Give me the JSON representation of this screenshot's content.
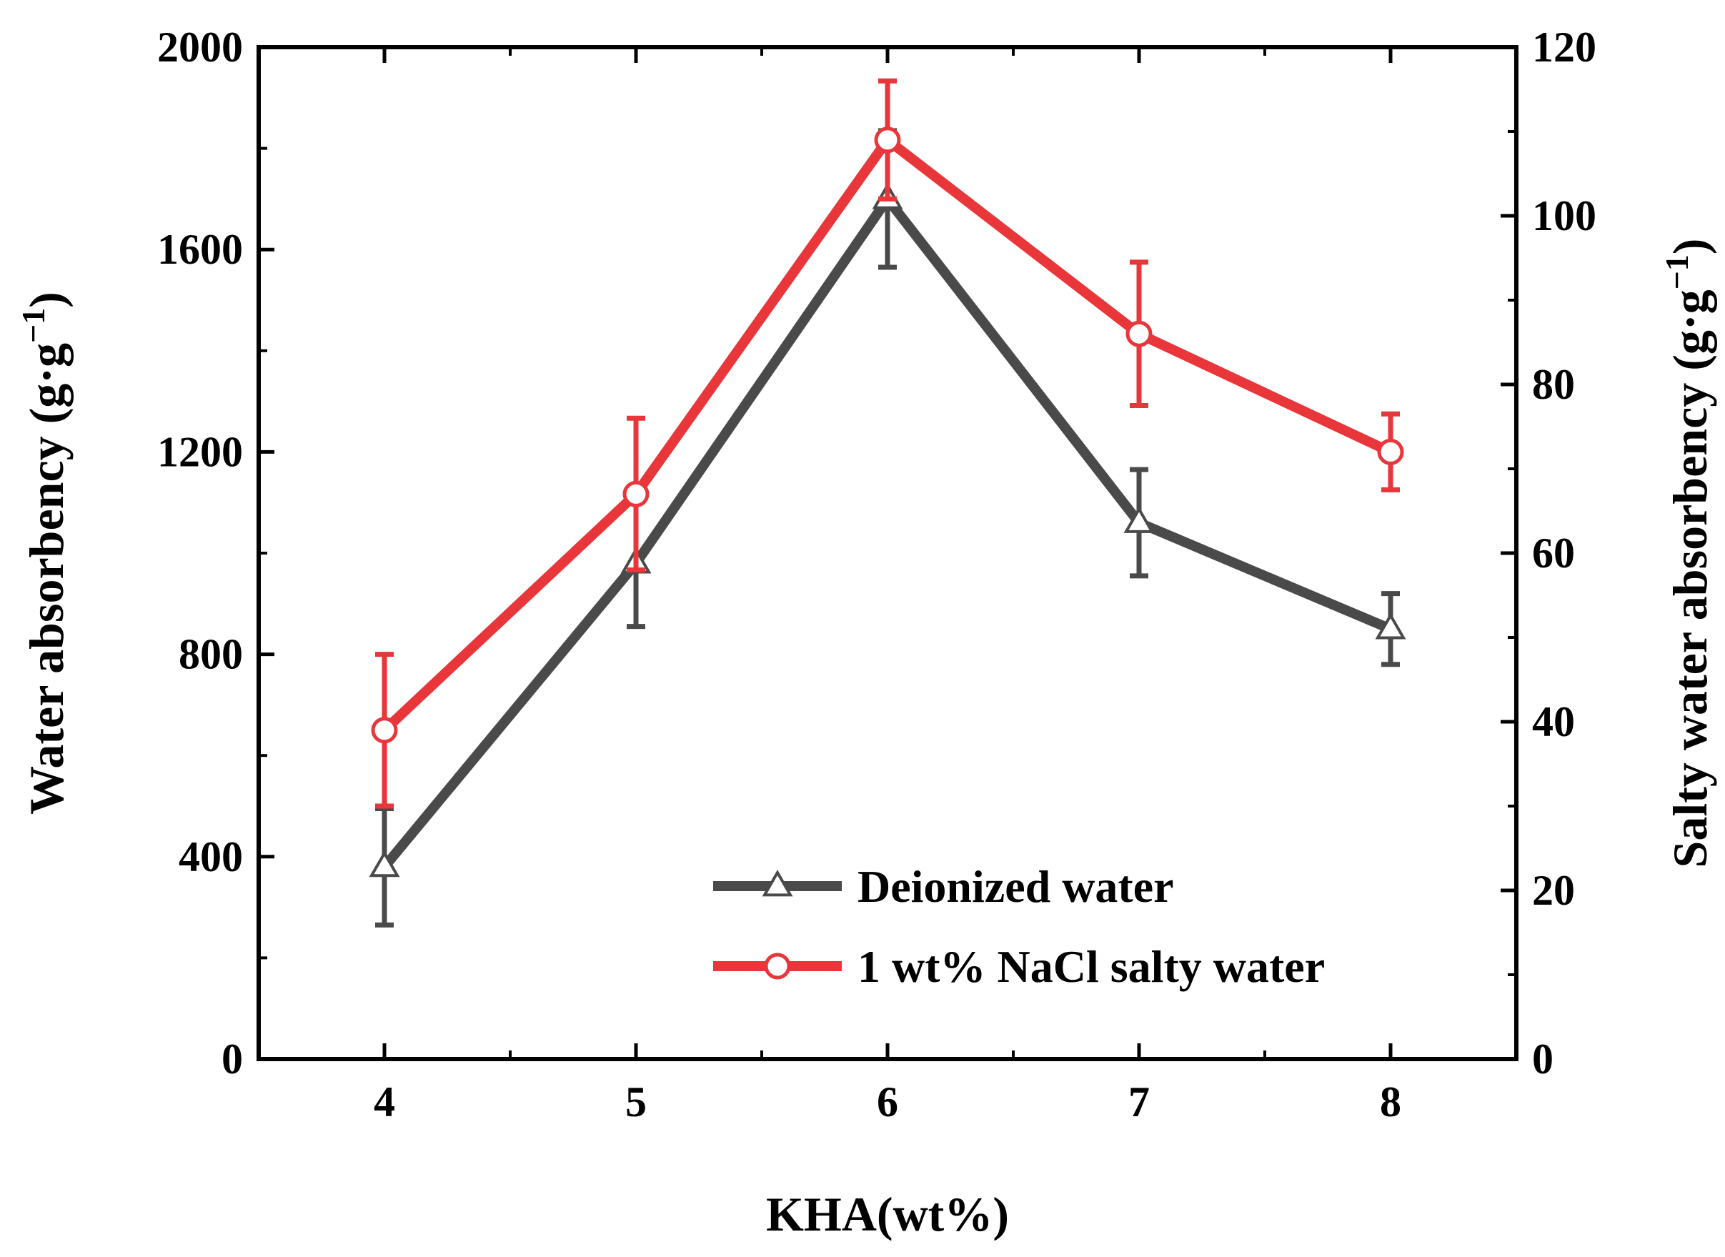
{
  "chart_data": {
    "type": "line",
    "x": [
      4,
      5,
      6,
      7,
      8
    ],
    "xlim": [
      3.5,
      8.5
    ],
    "xticks": [
      "4",
      "5",
      "6",
      "7",
      "8"
    ],
    "xlabel": "KHA(wt%)",
    "y_left": {
      "label_main": "Water absorbency (g·g",
      "label_sup": "−1",
      "label_close": ")",
      "ylim": [
        0,
        2000
      ],
      "ticks": [
        "0",
        "400",
        "800",
        "1200",
        "1600",
        "2000"
      ]
    },
    "y_right": {
      "label_main": "Salty water absorbency (g·g",
      "label_sup": "−1",
      "label_close": ")",
      "ylim": [
        0,
        120
      ],
      "ticks": [
        "0",
        "20",
        "40",
        "60",
        "80",
        "100",
        "120"
      ]
    },
    "series": [
      {
        "name": "Deionized water",
        "axis": "left",
        "marker": "triangle",
        "color": "#4a4a4a",
        "values": [
          380,
          980,
          1700,
          1060,
          850
        ],
        "err_low": [
          115,
          125,
          135,
          105,
          70
        ],
        "err_high": [
          115,
          125,
          135,
          105,
          70
        ]
      },
      {
        "name": "1 wt% NaCl salty water",
        "axis": "right",
        "marker": "circle",
        "color": "#e8363a",
        "values": [
          39,
          67,
          109,
          86,
          72
        ],
        "err_low": [
          9,
          9,
          7,
          8.5,
          4.5
        ],
        "err_high": [
          9,
          9,
          7,
          8.5,
          4.5
        ]
      }
    ]
  }
}
